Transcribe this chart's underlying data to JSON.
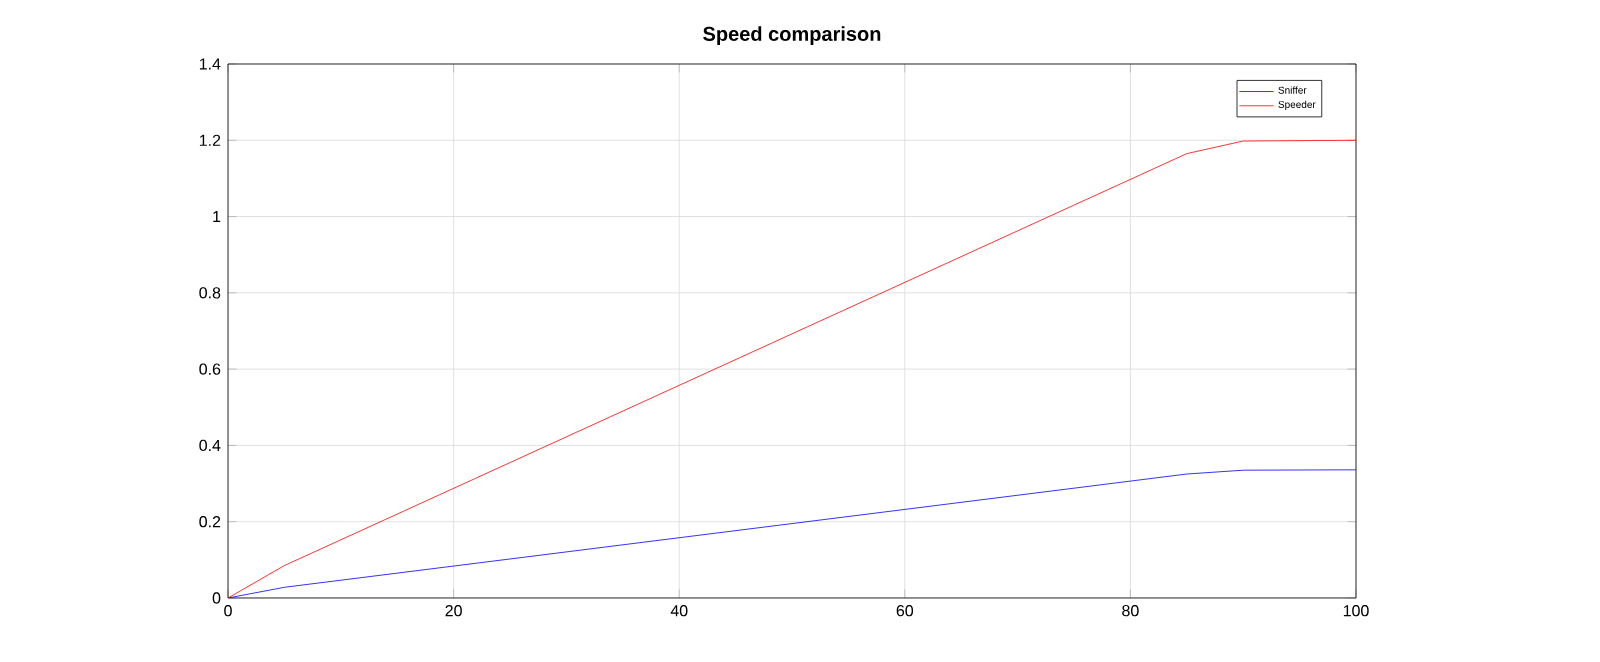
{
  "chart_data": {
    "type": "line",
    "title": "Speed comparison",
    "series": [
      {
        "name": "Sniffer",
        "color": "#0000ff",
        "x": [
          0,
          5,
          85,
          90,
          100
        ],
        "values": [
          0,
          0.028,
          0.325,
          0.335,
          0.336
        ]
      },
      {
        "name": "Speeder",
        "color": "#ff0000",
        "x": [
          0,
          5,
          85,
          90,
          100
        ],
        "values": [
          0,
          0.085,
          1.165,
          1.198,
          1.2
        ]
      }
    ],
    "xlim": [
      0,
      100
    ],
    "ylim": [
      0,
      1.4
    ],
    "xticks": [
      0,
      20,
      40,
      60,
      80,
      100
    ],
    "yticks": [
      0,
      0.2,
      0.4,
      0.6,
      0.8,
      1,
      1.2,
      1.4
    ],
    "grid": true,
    "legend": "top right",
    "marker": "none",
    "line_style": "solid"
  }
}
